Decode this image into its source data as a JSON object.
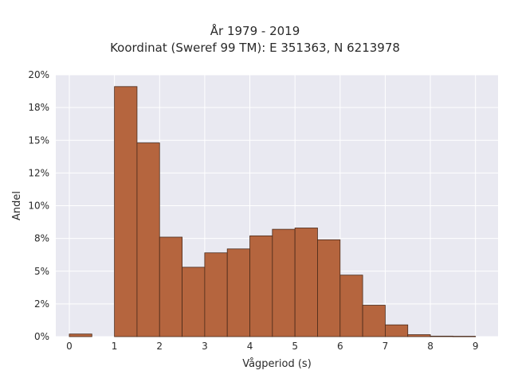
{
  "chart_data": {
    "type": "bar",
    "title_lines": [
      "År 1979 - 2019",
      "Koordinat (Sweref 99 TM): E 351363, N 6213978"
    ],
    "xlabel": "Vågperiod (s)",
    "ylabel": "Andel",
    "xlim": [
      -0.3,
      9.5
    ],
    "ylim": [
      0,
      0.2
    ],
    "x_ticks": [
      0,
      1,
      2,
      3,
      4,
      5,
      6,
      7,
      8,
      9
    ],
    "x_tick_labels": [
      "0",
      "1",
      "2",
      "3",
      "4",
      "5",
      "6",
      "7",
      "8",
      "9"
    ],
    "y_ticks": [
      0,
      0.025,
      0.05,
      0.075,
      0.1,
      0.125,
      0.15,
      0.175,
      0.2
    ],
    "y_tick_labels": [
      "0%",
      "2%",
      "5%",
      "8%",
      "10%",
      "12%",
      "15%",
      "18%",
      "20%"
    ],
    "bin_width": 0.5,
    "bins": [
      {
        "x0": 0.0,
        "value": 0.002
      },
      {
        "x0": 0.5,
        "value": 0.0
      },
      {
        "x0": 1.0,
        "value": 0.191
      },
      {
        "x0": 1.5,
        "value": 0.148
      },
      {
        "x0": 2.0,
        "value": 0.076
      },
      {
        "x0": 2.5,
        "value": 0.053
      },
      {
        "x0": 3.0,
        "value": 0.064
      },
      {
        "x0": 3.5,
        "value": 0.067
      },
      {
        "x0": 4.0,
        "value": 0.077
      },
      {
        "x0": 4.5,
        "value": 0.082
      },
      {
        "x0": 5.0,
        "value": 0.083
      },
      {
        "x0": 5.5,
        "value": 0.074
      },
      {
        "x0": 6.0,
        "value": 0.047
      },
      {
        "x0": 6.5,
        "value": 0.024
      },
      {
        "x0": 7.0,
        "value": 0.009
      },
      {
        "x0": 7.5,
        "value": 0.0015
      },
      {
        "x0": 8.0,
        "value": 0.0004
      },
      {
        "x0": 8.5,
        "value": 0.0003
      }
    ],
    "grid": true,
    "bar_color": "#b5653e",
    "bar_edge_color": "#4a2a1a",
    "background_color": "#e9e9f1",
    "grid_color": "#ffffff"
  }
}
